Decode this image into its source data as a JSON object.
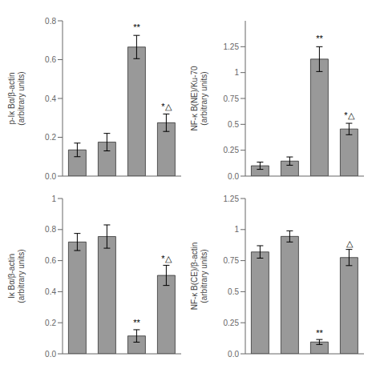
{
  "chart_data": [
    {
      "type": "bar",
      "categories": [
        null,
        null,
        null,
        null
      ],
      "values": [
        0.135,
        0.175,
        0.665,
        0.275
      ],
      "errors": [
        0.035,
        0.045,
        0.06,
        0.045
      ],
      "color": "#999999",
      "ylim": [
        0.0,
        0.8
      ],
      "yticks": [
        {
          "value": 0,
          "label": "0.0"
        },
        0.2,
        0.4,
        0.6,
        0.8
      ],
      "ylabel": "p-Iκ Bα/β-actin\n(arbitrary units)",
      "annotations": [
        {
          "text": "**",
          "x": 2,
          "y": 0.745
        },
        {
          "text": "*△",
          "x": 3,
          "y": 0.34
        }
      ],
      "tick_labels": "y"
    },
    {
      "type": "bar",
      "categories": [
        null,
        null,
        null,
        null
      ],
      "values": [
        0.72,
        0.755,
        0.115,
        0.505
      ],
      "errors": [
        0.055,
        0.075,
        0.04,
        0.065
      ],
      "color": "#999999",
      "ylim": [
        0.0,
        1.0
      ],
      "yticks": [
        {
          "value": 0,
          "label": "0.0"
        },
        0.2,
        0.4,
        0.6,
        0.8,
        1
      ],
      "ylabel": "Iκ Bα/β-actin\n(arbitrary units)",
      "annotations": [
        {
          "text": "**",
          "x": 2,
          "y": 0.175
        },
        {
          "text": "*△",
          "x": 3,
          "y": 0.59
        }
      ],
      "tick_labels": "y"
    },
    {
      "type": "bar",
      "categories": [
        null,
        null,
        null,
        null
      ],
      "values": [
        0.1,
        0.145,
        1.13,
        0.455
      ],
      "errors": [
        0.035,
        0.04,
        0.12,
        0.055
      ],
      "color": "#999999",
      "ylim": [
        0.0,
        1.5
      ],
      "yticks": [
        {
          "value": 0,
          "label": "0.0"
        },
        0.25,
        0.5,
        0.75,
        1,
        1.25
      ],
      "ylabel": "NF-κ B(NE)/Ku-70\n(arbitrary units)",
      "annotations": [
        {
          "text": "**",
          "x": 2,
          "y": 1.29
        },
        {
          "text": "*△",
          "x": 3,
          "y": 0.55
        }
      ],
      "tick_labels": "y"
    },
    {
      "type": "bar",
      "categories": [
        null,
        null,
        null,
        null
      ],
      "values": [
        0.82,
        0.945,
        0.095,
        0.775
      ],
      "errors": [
        0.05,
        0.045,
        0.02,
        0.065
      ],
      "color": "#999999",
      "ylim": [
        0.0,
        1.25
      ],
      "yticks": [
        {
          "value": 0,
          "label": "0.0"
        },
        0.25,
        0.5,
        0.75,
        1,
        1.25
      ],
      "ylabel": "NF-κ B(CE)/β-actin\n(arbitrary units)",
      "annotations": [
        {
          "text": "**",
          "x": 2,
          "y": 0.135
        },
        {
          "text": "△",
          "x": 3,
          "y": 0.86
        }
      ],
      "tick_labels": "y"
    }
  ]
}
